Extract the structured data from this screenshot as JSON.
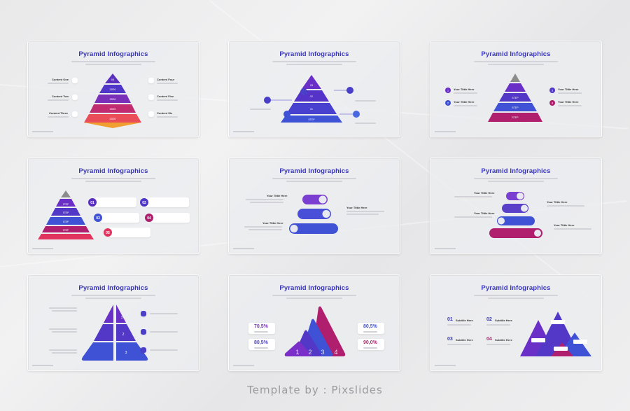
{
  "colors": {
    "title": "#3a37b8",
    "violet": "#6a2fc7",
    "blue": "#3f52d6",
    "magenta": "#b01f6e",
    "red": "#e0345f",
    "orange": "#f0a030",
    "grey": "#8c8c8c"
  },
  "slides": [
    {
      "title": "Pyramid Infographics",
      "left_labels": [
        "Content One",
        "Content Two",
        "Content Three"
      ],
      "right_labels": [
        "Content Four",
        "Content Five",
        "Content Six"
      ],
      "layer_labels": [
        "04",
        "2020",
        "2020",
        "2020",
        "2020"
      ]
    },
    {
      "title": "Pyramid Infographics",
      "layer_labels": [
        "03",
        "02",
        "01",
        "STEP"
      ]
    },
    {
      "title": "Pyramid Infographics",
      "item_label": "Your Tittle Here",
      "numbers": [
        "1",
        "2",
        "3",
        "4"
      ],
      "layer_labels": [
        "STEP",
        "STEP",
        "STEP"
      ]
    },
    {
      "title": "Pyramid Infographics",
      "numbers": [
        "01",
        "02",
        "03",
        "04",
        "05"
      ],
      "layer_labels": [
        "STEP",
        "STEP",
        "STEP",
        "STEP"
      ]
    },
    {
      "title": "Pyramid Infographics",
      "item_label": "Your Tittle Here"
    },
    {
      "title": "Pyramid Infographics",
      "item_label": "Your Tittle Here"
    },
    {
      "title": "Pyramid Infographics",
      "numbers": [
        "1",
        "2",
        "3"
      ]
    },
    {
      "title": "Pyramid Infographics",
      "percents": [
        "70,5%",
        "80,5%",
        "80,5%",
        "90,0%"
      ],
      "numbers": [
        "1",
        "2",
        "3",
        "4"
      ]
    },
    {
      "title": "Pyramid Infographics",
      "numbers": [
        "01",
        "02",
        "03",
        "04"
      ],
      "subtitle": "Subtitle Here"
    }
  ],
  "footer": "Template by : Pixslides"
}
